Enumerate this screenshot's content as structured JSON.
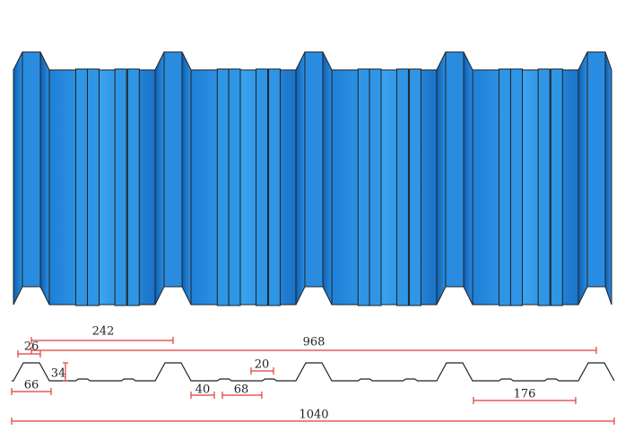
{
  "dimensions": [
    242,
    26,
    968,
    34,
    66,
    20,
    40,
    68,
    176,
    1040
  ]
}
